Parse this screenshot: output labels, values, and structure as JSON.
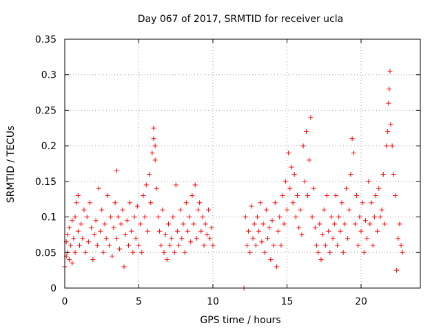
{
  "chart_data": {
    "type": "scatter",
    "title": "Day 067 of 2017, SRMTID for receiver ucla",
    "xlabel": "GPS time / hours",
    "ylabel": "SRMTID / TECUs",
    "xlim": [
      0,
      24
    ],
    "ylim": [
      0,
      0.35
    ],
    "xticks": [
      0,
      5,
      10,
      15,
      20
    ],
    "xtick_labels": [
      "0",
      "5",
      "10",
      "15",
      "20"
    ],
    "yticks": [
      0,
      0.05,
      0.1,
      0.15,
      0.2,
      0.25,
      0.3,
      0.35
    ],
    "ytick_labels": [
      "0",
      "0.05",
      "0.1",
      "0.15",
      "0.2",
      "0.25",
      "0.3",
      "0.35"
    ],
    "grid": true,
    "marker": "plus",
    "colors": {
      "series": "#ff0000",
      "grid": "#a0a0a0",
      "axis": "#000000"
    },
    "series": [
      {
        "name": "SRMTID",
        "points": [
          [
            0.0,
            0.03
          ],
          [
            0.1,
            0.045
          ],
          [
            0.1,
            0.065
          ],
          [
            0.2,
            0.05
          ],
          [
            0.2,
            0.075
          ],
          [
            0.3,
            0.04
          ],
          [
            0.3,
            0.085
          ],
          [
            0.4,
            0.06
          ],
          [
            0.5,
            0.095
          ],
          [
            0.5,
            0.035
          ],
          [
            0.6,
            0.07
          ],
          [
            0.7,
            0.1
          ],
          [
            0.7,
            0.05
          ],
          [
            0.8,
            0.12
          ],
          [
            0.9,
            0.08
          ],
          [
            0.9,
            0.13
          ],
          [
            1.0,
            0.06
          ],
          [
            1.1,
            0.09
          ],
          [
            1.2,
            0.07
          ],
          [
            1.3,
            0.11
          ],
          [
            1.4,
            0.05
          ],
          [
            1.5,
            0.1
          ],
          [
            1.6,
            0.065
          ],
          [
            1.7,
            0.12
          ],
          [
            1.8,
            0.085
          ],
          [
            1.9,
            0.04
          ],
          [
            2.0,
            0.075
          ],
          [
            2.1,
            0.095
          ],
          [
            2.2,
            0.06
          ],
          [
            2.3,
            0.14
          ],
          [
            2.4,
            0.08
          ],
          [
            2.5,
            0.11
          ],
          [
            2.6,
            0.05
          ],
          [
            2.7,
            0.09
          ],
          [
            2.8,
            0.07
          ],
          [
            2.9,
            0.13
          ],
          [
            3.0,
            0.06
          ],
          [
            3.1,
            0.1
          ],
          [
            3.2,
            0.045
          ],
          [
            3.3,
            0.085
          ],
          [
            3.4,
            0.12
          ],
          [
            3.5,
            0.165
          ],
          [
            3.5,
            0.07
          ],
          [
            3.6,
            0.1
          ],
          [
            3.7,
            0.055
          ],
          [
            3.8,
            0.09
          ],
          [
            3.9,
            0.11
          ],
          [
            4.0,
            0.03
          ],
          [
            4.1,
            0.075
          ],
          [
            4.2,
            0.095
          ],
          [
            4.3,
            0.06
          ],
          [
            4.4,
            0.12
          ],
          [
            4.5,
            0.08
          ],
          [
            4.6,
            0.05
          ],
          [
            4.7,
            0.1
          ],
          [
            4.8,
            0.07
          ],
          [
            4.9,
            0.115
          ],
          [
            5.0,
            0.06
          ],
          [
            5.1,
            0.09
          ],
          [
            5.2,
            0.05
          ],
          [
            5.3,
            0.13
          ],
          [
            5.4,
            0.1
          ],
          [
            5.5,
            0.145
          ],
          [
            5.6,
            0.08
          ],
          [
            5.7,
            0.16
          ],
          [
            5.8,
            0.12
          ],
          [
            5.9,
            0.19
          ],
          [
            6.0,
            0.21
          ],
          [
            6.0,
            0.225
          ],
          [
            6.1,
            0.18
          ],
          [
            6.1,
            0.2
          ],
          [
            6.2,
            0.14
          ],
          [
            6.3,
            0.1
          ],
          [
            6.4,
            0.08
          ],
          [
            6.5,
            0.06
          ],
          [
            6.6,
            0.11
          ],
          [
            6.7,
            0.05
          ],
          [
            6.8,
            0.075
          ],
          [
            6.9,
            0.04
          ],
          [
            7.0,
            0.09
          ],
          [
            7.1,
            0.06
          ],
          [
            7.2,
            0.07
          ],
          [
            7.3,
            0.1
          ],
          [
            7.4,
            0.05
          ],
          [
            7.5,
            0.145
          ],
          [
            7.6,
            0.08
          ],
          [
            7.7,
            0.06
          ],
          [
            7.8,
            0.11
          ],
          [
            7.9,
            0.07
          ],
          [
            8.0,
            0.09
          ],
          [
            8.1,
            0.05
          ],
          [
            8.2,
            0.12
          ],
          [
            8.3,
            0.08
          ],
          [
            8.4,
            0.1
          ],
          [
            8.5,
            0.065
          ],
          [
            8.6,
            0.13
          ],
          [
            8.7,
            0.09
          ],
          [
            8.8,
            0.145
          ],
          [
            8.9,
            0.07
          ],
          [
            9.0,
            0.11
          ],
          [
            9.1,
            0.12
          ],
          [
            9.2,
            0.08
          ],
          [
            9.3,
            0.1
          ],
          [
            9.4,
            0.06
          ],
          [
            9.5,
            0.09
          ],
          [
            9.6,
            0.075
          ],
          [
            9.7,
            0.11
          ],
          [
            9.8,
            0.07
          ],
          [
            9.9,
            0.085
          ],
          [
            10.0,
            0.06
          ],
          [
            12.1,
            0.0
          ],
          [
            12.2,
            0.1
          ],
          [
            12.3,
            0.06
          ],
          [
            12.4,
            0.08
          ],
          [
            12.5,
            0.05
          ],
          [
            12.6,
            0.115
          ],
          [
            12.7,
            0.07
          ],
          [
            12.8,
            0.09
          ],
          [
            12.9,
            0.06
          ],
          [
            13.0,
            0.1
          ],
          [
            13.1,
            0.08
          ],
          [
            13.2,
            0.12
          ],
          [
            13.3,
            0.065
          ],
          [
            13.4,
            0.09
          ],
          [
            13.5,
            0.05
          ],
          [
            13.6,
            0.11
          ],
          [
            13.7,
            0.07
          ],
          [
            13.8,
            0.085
          ],
          [
            13.9,
            0.04
          ],
          [
            14.0,
            0.095
          ],
          [
            14.1,
            0.06
          ],
          [
            14.2,
            0.12
          ],
          [
            14.3,
            0.03
          ],
          [
            14.4,
            0.08
          ],
          [
            14.5,
            0.1
          ],
          [
            14.6,
            0.06
          ],
          [
            14.7,
            0.13
          ],
          [
            14.8,
            0.09
          ],
          [
            14.9,
            0.15
          ],
          [
            15.0,
            0.11
          ],
          [
            15.1,
            0.19
          ],
          [
            15.2,
            0.14
          ],
          [
            15.3,
            0.17
          ],
          [
            15.4,
            0.12
          ],
          [
            15.5,
            0.16
          ],
          [
            15.6,
            0.1
          ],
          [
            15.7,
            0.13
          ],
          [
            15.8,
            0.085
          ],
          [
            15.9,
            0.11
          ],
          [
            16.0,
            0.075
          ],
          [
            16.1,
            0.2
          ],
          [
            16.2,
            0.15
          ],
          [
            16.3,
            0.22
          ],
          [
            16.4,
            0.13
          ],
          [
            16.5,
            0.18
          ],
          [
            16.6,
            0.24
          ],
          [
            16.7,
            0.1
          ],
          [
            16.8,
            0.14
          ],
          [
            16.9,
            0.085
          ],
          [
            17.0,
            0.06
          ],
          [
            17.1,
            0.05
          ],
          [
            17.2,
            0.09
          ],
          [
            17.3,
            0.04
          ],
          [
            17.4,
            0.075
          ],
          [
            17.5,
            0.11
          ],
          [
            17.6,
            0.06
          ],
          [
            17.7,
            0.13
          ],
          [
            17.8,
            0.08
          ],
          [
            17.9,
            0.05
          ],
          [
            18.0,
            0.1
          ],
          [
            18.1,
            0.07
          ],
          [
            18.2,
            0.09
          ],
          [
            18.3,
            0.13
          ],
          [
            18.4,
            0.06
          ],
          [
            18.5,
            0.1
          ],
          [
            18.6,
            0.08
          ],
          [
            18.7,
            0.12
          ],
          [
            18.8,
            0.05
          ],
          [
            18.9,
            0.09
          ],
          [
            19.0,
            0.14
          ],
          [
            19.1,
            0.07
          ],
          [
            19.2,
            0.11
          ],
          [
            19.3,
            0.16
          ],
          [
            19.4,
            0.21
          ],
          [
            19.5,
            0.19
          ],
          [
            19.6,
            0.09
          ],
          [
            19.7,
            0.13
          ],
          [
            19.8,
            0.06
          ],
          [
            19.9,
            0.1
          ],
          [
            20.0,
            0.08
          ],
          [
            20.1,
            0.12
          ],
          [
            20.2,
            0.05
          ],
          [
            20.3,
            0.095
          ],
          [
            20.4,
            0.07
          ],
          [
            20.5,
            0.15
          ],
          [
            20.6,
            0.09
          ],
          [
            20.7,
            0.12
          ],
          [
            20.8,
            0.06
          ],
          [
            20.9,
            0.1
          ],
          [
            21.0,
            0.13
          ],
          [
            21.1,
            0.08
          ],
          [
            21.2,
            0.14
          ],
          [
            21.3,
            0.1
          ],
          [
            21.4,
            0.11
          ],
          [
            21.5,
            0.16
          ],
          [
            21.6,
            0.09
          ],
          [
            21.7,
            0.2
          ],
          [
            21.8,
            0.22
          ],
          [
            21.85,
            0.26
          ],
          [
            21.9,
            0.28
          ],
          [
            21.95,
            0.305
          ],
          [
            22.0,
            0.23
          ],
          [
            22.1,
            0.2
          ],
          [
            22.2,
            0.16
          ],
          [
            22.3,
            0.13
          ],
          [
            22.4,
            0.025
          ],
          [
            22.5,
            0.07
          ],
          [
            22.6,
            0.09
          ],
          [
            22.7,
            0.06
          ],
          [
            22.8,
            0.05
          ]
        ]
      }
    ]
  }
}
